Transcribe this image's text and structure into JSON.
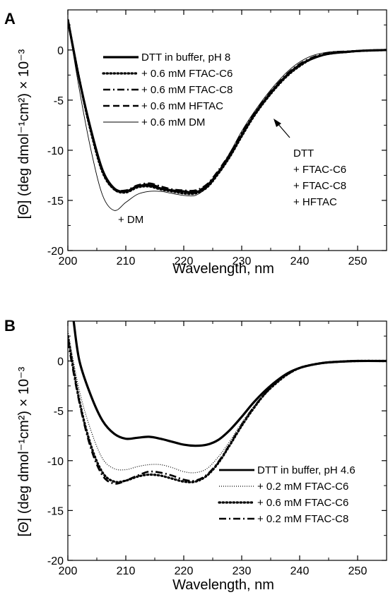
{
  "chart_data": [
    {
      "type": "line",
      "panel_label": "A",
      "xlabel": "Wavelength, nm",
      "ylabel": "[Θ] (deg dmol⁻¹cm²) × 10⁻³",
      "xlim": [
        200,
        255
      ],
      "ylim": [
        -20,
        4
      ],
      "xticks": [
        "200",
        "210",
        "220",
        "230",
        "240",
        "250"
      ],
      "yticks": [
        "0",
        "-5",
        "-10",
        "-15",
        "-20"
      ],
      "legend_position": "top-left",
      "series": [
        {
          "name": "DTT in buffer, pH 8",
          "style": "thick",
          "points": [
            [
              200,
              3
            ],
            [
              202,
              -3
            ],
            [
              204,
              -8
            ],
            [
              206,
              -12
            ],
            [
              208,
              -13.8
            ],
            [
              210,
              -14.1
            ],
            [
              212,
              -13.6
            ],
            [
              214,
              -13.5
            ],
            [
              216,
              -13.8
            ],
            [
              218,
              -14.0
            ],
            [
              220,
              -14.1
            ],
            [
              222,
              -14.2
            ],
            [
              224,
              -13.6
            ],
            [
              226,
              -12.2
            ],
            [
              228,
              -10.5
            ],
            [
              230,
              -8.5
            ],
            [
              232,
              -6.6
            ],
            [
              234,
              -5.0
            ],
            [
              236,
              -3.6
            ],
            [
              238,
              -2.4
            ],
            [
              240,
              -1.5
            ],
            [
              242,
              -0.9
            ],
            [
              244,
              -0.5
            ],
            [
              246,
              -0.3
            ],
            [
              248,
              -0.2
            ],
            [
              250,
              -0.1
            ],
            [
              252,
              -0.05
            ],
            [
              255,
              0
            ]
          ]
        },
        {
          "name": "+ 0.6 mM FTAC-C6",
          "style": "dotted",
          "points": [
            [
              200,
              3
            ],
            [
              202,
              -3
            ],
            [
              204,
              -8.2
            ],
            [
              206,
              -12.2
            ],
            [
              208,
              -13.9
            ],
            [
              210,
              -14.2
            ],
            [
              212,
              -13.7
            ],
            [
              214,
              -13.6
            ],
            [
              216,
              -13.9
            ],
            [
              218,
              -14.1
            ],
            [
              220,
              -14.3
            ],
            [
              222,
              -14.3
            ],
            [
              224,
              -13.7
            ],
            [
              226,
              -12.3
            ],
            [
              228,
              -10.6
            ],
            [
              230,
              -8.6
            ],
            [
              232,
              -6.7
            ],
            [
              234,
              -5.1
            ],
            [
              236,
              -3.7
            ],
            [
              238,
              -2.5
            ],
            [
              240,
              -1.6
            ],
            [
              242,
              -0.9
            ],
            [
              244,
              -0.5
            ],
            [
              246,
              -0.3
            ],
            [
              248,
              -0.2
            ],
            [
              250,
              -0.1
            ],
            [
              252,
              -0.05
            ],
            [
              255,
              0
            ]
          ]
        },
        {
          "name": "+ 0.6 mM FTAC-C8",
          "style": "dashdot",
          "points": [
            [
              200,
              3
            ],
            [
              202,
              -3
            ],
            [
              204,
              -8
            ],
            [
              206,
              -12
            ],
            [
              208,
              -13.8
            ],
            [
              210,
              -14.0
            ],
            [
              212,
              -13.5
            ],
            [
              214,
              -13.3
            ],
            [
              216,
              -13.6
            ],
            [
              218,
              -13.9
            ],
            [
              220,
              -14.0
            ],
            [
              222,
              -14.0
            ],
            [
              224,
              -13.4
            ],
            [
              226,
              -12.0
            ],
            [
              228,
              -10.3
            ],
            [
              230,
              -8.3
            ],
            [
              232,
              -6.5
            ],
            [
              234,
              -4.9
            ],
            [
              236,
              -3.5
            ],
            [
              238,
              -2.3
            ],
            [
              240,
              -1.4
            ],
            [
              242,
              -0.8
            ],
            [
              244,
              -0.4
            ],
            [
              246,
              -0.2
            ],
            [
              248,
              -0.15
            ],
            [
              250,
              -0.1
            ],
            [
              252,
              -0.05
            ],
            [
              255,
              0
            ]
          ]
        },
        {
          "name": "+ 0.6 mM HFTAC",
          "style": "dashed",
          "points": [
            [
              200,
              3
            ],
            [
              202,
              -3
            ],
            [
              204,
              -8.1
            ],
            [
              206,
              -12.1
            ],
            [
              208,
              -13.9
            ],
            [
              210,
              -14.1
            ],
            [
              212,
              -13.6
            ],
            [
              214,
              -13.4
            ],
            [
              216,
              -13.7
            ],
            [
              218,
              -14.0
            ],
            [
              220,
              -14.1
            ],
            [
              222,
              -14.1
            ],
            [
              224,
              -13.5
            ],
            [
              226,
              -12.1
            ],
            [
              228,
              -10.4
            ],
            [
              230,
              -8.4
            ],
            [
              232,
              -6.6
            ],
            [
              234,
              -5.0
            ],
            [
              236,
              -3.6
            ],
            [
              238,
              -2.4
            ],
            [
              240,
              -1.5
            ],
            [
              242,
              -0.9
            ],
            [
              244,
              -0.5
            ],
            [
              246,
              -0.3
            ],
            [
              248,
              -0.2
            ],
            [
              250,
              -0.1
            ],
            [
              252,
              -0.05
            ],
            [
              255,
              0
            ]
          ]
        },
        {
          "name": "+ 0.6 mM DM",
          "style": "thin",
          "points": [
            [
              200,
              3
            ],
            [
              202,
              -4
            ],
            [
              204,
              -10
            ],
            [
              206,
              -14.5
            ],
            [
              208,
              -16.0
            ],
            [
              210,
              -15.2
            ],
            [
              212,
              -14.4
            ],
            [
              214,
              -14.1
            ],
            [
              216,
              -14.1
            ],
            [
              218,
              -14.3
            ],
            [
              220,
              -14.5
            ],
            [
              222,
              -14.5
            ],
            [
              224,
              -13.7
            ],
            [
              226,
              -12.1
            ],
            [
              228,
              -10.2
            ],
            [
              230,
              -8.1
            ],
            [
              232,
              -6.3
            ],
            [
              234,
              -4.7
            ],
            [
              236,
              -3.3
            ],
            [
              238,
              -2.1
            ],
            [
              240,
              -1.2
            ],
            [
              242,
              -0.6
            ],
            [
              244,
              -0.3
            ],
            [
              246,
              -0.15
            ],
            [
              248,
              -0.1
            ],
            [
              250,
              -0.05
            ],
            [
              255,
              0
            ]
          ]
        }
      ],
      "annotations": [
        "+ DM",
        "DTT",
        "+ FTAC-C6",
        "+ FTAC-C8",
        "+ HFTAC"
      ]
    },
    {
      "type": "line",
      "panel_label": "B",
      "xlabel": "Wavelength, nm",
      "ylabel": "[Θ] (deg dmol⁻¹cm²) × 10⁻³",
      "xlim": [
        200,
        255
      ],
      "ylim": [
        -20,
        4
      ],
      "xticks": [
        "200",
        "210",
        "220",
        "230",
        "240",
        "250"
      ],
      "yticks": [
        "0",
        "-5",
        "-10",
        "-15",
        "-20"
      ],
      "legend_position": "bottom-right",
      "series": [
        {
          "name": "DTT in buffer, pH 4.6",
          "style": "thick",
          "points": [
            [
              201,
              4
            ],
            [
              202,
              0
            ],
            [
              204,
              -3.5
            ],
            [
              206,
              -6
            ],
            [
              208,
              -7.3
            ],
            [
              210,
              -7.8
            ],
            [
              212,
              -7.7
            ],
            [
              214,
              -7.6
            ],
            [
              216,
              -7.8
            ],
            [
              218,
              -8.1
            ],
            [
              220,
              -8.4
            ],
            [
              222,
              -8.5
            ],
            [
              224,
              -8.4
            ],
            [
              226,
              -7.9
            ],
            [
              228,
              -6.9
            ],
            [
              230,
              -5.6
            ],
            [
              232,
              -4.2
            ],
            [
              234,
              -3.0
            ],
            [
              236,
              -2.0
            ],
            [
              238,
              -1.2
            ],
            [
              240,
              -0.7
            ],
            [
              242,
              -0.4
            ],
            [
              244,
              -0.2
            ],
            [
              246,
              -0.1
            ],
            [
              250,
              0
            ],
            [
              255,
              0
            ]
          ]
        },
        {
          "name": "+ 0.2 mM FTAC-C6",
          "style": "finedotted",
          "points": [
            [
              200,
              3
            ],
            [
              202,
              -3
            ],
            [
              204,
              -7
            ],
            [
              206,
              -9.8
            ],
            [
              208,
              -10.8
            ],
            [
              210,
              -10.9
            ],
            [
              212,
              -10.6
            ],
            [
              214,
              -10.4
            ],
            [
              216,
              -10.4
            ],
            [
              218,
              -10.7
            ],
            [
              220,
              -11.1
            ],
            [
              222,
              -11.2
            ],
            [
              224,
              -10.8
            ],
            [
              226,
              -9.6
            ],
            [
              228,
              -8.0
            ],
            [
              230,
              -6.2
            ],
            [
              232,
              -4.6
            ],
            [
              234,
              -3.2
            ],
            [
              236,
              -2.1
            ],
            [
              238,
              -1.3
            ],
            [
              240,
              -0.7
            ],
            [
              242,
              -0.4
            ],
            [
              244,
              -0.2
            ],
            [
              246,
              -0.1
            ],
            [
              250,
              0
            ],
            [
              255,
              0
            ]
          ]
        },
        {
          "name": "+ 0.6 mM FTAC-C6",
          "style": "dotted",
          "points": [
            [
              200,
              2.5
            ],
            [
              202,
              -4
            ],
            [
              204,
              -8.5
            ],
            [
              206,
              -11.2
            ],
            [
              208,
              -12.1
            ],
            [
              210,
              -12.0
            ],
            [
              212,
              -11.6
            ],
            [
              214,
              -11.4
            ],
            [
              216,
              -11.5
            ],
            [
              218,
              -11.8
            ],
            [
              220,
              -12.1
            ],
            [
              222,
              -12.1
            ],
            [
              224,
              -11.5
            ],
            [
              226,
              -10.2
            ],
            [
              228,
              -8.4
            ],
            [
              230,
              -6.5
            ],
            [
              232,
              -4.8
            ],
            [
              234,
              -3.3
            ],
            [
              236,
              -2.2
            ],
            [
              238,
              -1.3
            ],
            [
              240,
              -0.7
            ],
            [
              242,
              -0.4
            ],
            [
              244,
              -0.2
            ],
            [
              246,
              -0.1
            ],
            [
              250,
              0
            ],
            [
              255,
              0
            ]
          ]
        },
        {
          "name": "+ 0.2 mM FTAC-C8",
          "style": "dashdot",
          "points": [
            [
              200,
              2
            ],
            [
              202,
              -4.2
            ],
            [
              204,
              -8.8
            ],
            [
              206,
              -11.5
            ],
            [
              208,
              -12.3
            ],
            [
              210,
              -12.0
            ],
            [
              212,
              -11.5
            ],
            [
              214,
              -11.1
            ],
            [
              216,
              -11.2
            ],
            [
              218,
              -11.5
            ],
            [
              220,
              -11.9
            ],
            [
              222,
              -12.0
            ],
            [
              224,
              -11.4
            ],
            [
              226,
              -10.1
            ],
            [
              228,
              -8.3
            ],
            [
              230,
              -6.4
            ],
            [
              232,
              -4.7
            ],
            [
              234,
              -3.3
            ],
            [
              236,
              -2.1
            ],
            [
              238,
              -1.3
            ],
            [
              240,
              -0.7
            ],
            [
              242,
              -0.4
            ],
            [
              244,
              -0.2
            ],
            [
              246,
              -0.1
            ],
            [
              250,
              0
            ],
            [
              255,
              0
            ]
          ]
        }
      ]
    }
  ]
}
